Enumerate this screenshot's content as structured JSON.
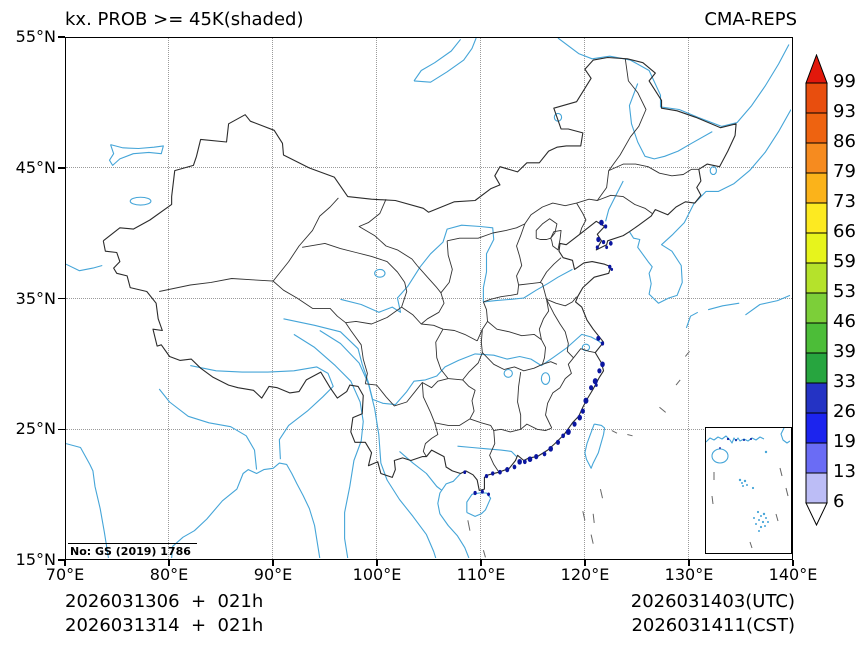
{
  "header": {
    "title": "kx. PROB >= 45K(shaded)",
    "model": "CMA-REPS"
  },
  "axes": {
    "x_ticks": [
      "70°E",
      "80°E",
      "90°E",
      "100°E",
      "110°E",
      "120°E",
      "130°E",
      "140°E"
    ],
    "y_ticks": [
      "55°N",
      "45°N",
      "35°N",
      "25°N",
      "15°N"
    ]
  },
  "colorbar": {
    "tick_values": [
      "99",
      "93",
      "86",
      "79",
      "73",
      "66",
      "59",
      "53",
      "46",
      "39",
      "33",
      "26",
      "19",
      "13",
      "6"
    ],
    "cell_colors": [
      "#e84e0e",
      "#ee6310",
      "#f68b1f",
      "#fbb31a",
      "#fdea21",
      "#e7f41c",
      "#b5e22b",
      "#7ccf39",
      "#4cbd38",
      "#27a53f",
      "#2433c4",
      "#1c24ee",
      "#6a6cf5",
      "#bcbdf6"
    ],
    "top_arrow_color": "#e2180b",
    "bottom_arrow_color": "#ffffff"
  },
  "map": {
    "license_note": "No: GS (2019) 1786",
    "line_colors": {
      "water": "#45a5d8",
      "boundary": "#333333",
      "shaded_spot": "#0b16a0"
    }
  },
  "footer": {
    "left_line1": "2026031306  +  021h",
    "left_line2": "2026031314  +  021h",
    "right_line1": "2026031403(UTC)",
    "right_line2": "2026031411(CST)"
  }
}
